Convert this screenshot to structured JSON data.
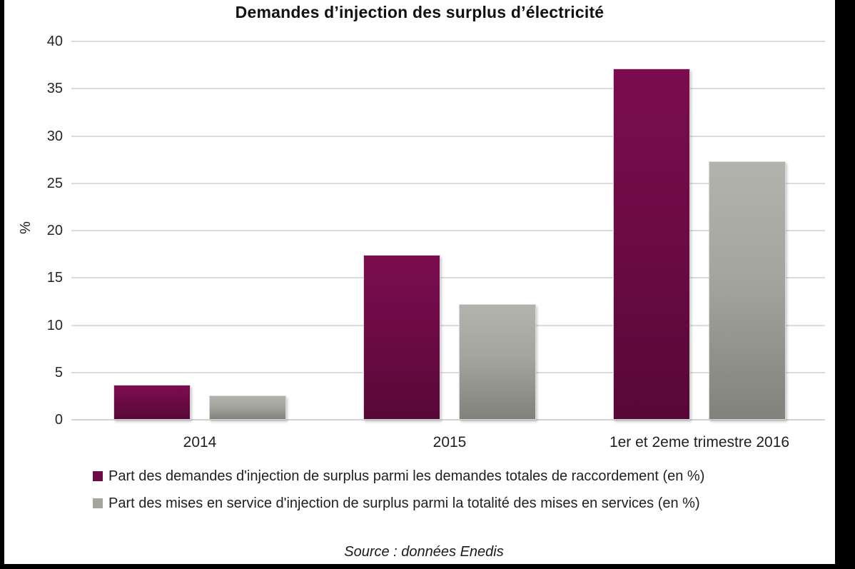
{
  "title": "Demandes d’injection des surplus d’électricité",
  "source": "Source : données Enedis",
  "colors": {
    "series1": "#6d0b46",
    "series2": "#a5a59f",
    "gridline": "#dcdcdc",
    "text": "#1a1a1a",
    "frame_border": "#000000"
  },
  "chart_data": {
    "type": "bar",
    "title": "Demandes d’injection des surplus d’électricité",
    "categories": [
      "2014",
      "2015",
      "1er et 2eme trimestre 2016"
    ],
    "series": [
      {
        "name": "Part des demandes d'injection de surplus parmi les demandes totales de raccordement (en %)",
        "key": "demandes",
        "color": "#6d0b46",
        "values": [
          3.7,
          17.4,
          37.1
        ]
      },
      {
        "name": "Part des mises en service d'injection de surplus parmi la totalité des mises en services (en %)",
        "key": "mises",
        "color": "#a5a59f",
        "values": [
          2.6,
          12.2,
          27.3
        ]
      }
    ],
    "xlabel": "",
    "ylabel": "%",
    "ylim": [
      0,
      40
    ],
    "yticks": [
      0,
      5,
      10,
      15,
      20,
      25,
      30,
      35,
      40
    ],
    "grid": true,
    "legend_position": "bottom-left"
  }
}
